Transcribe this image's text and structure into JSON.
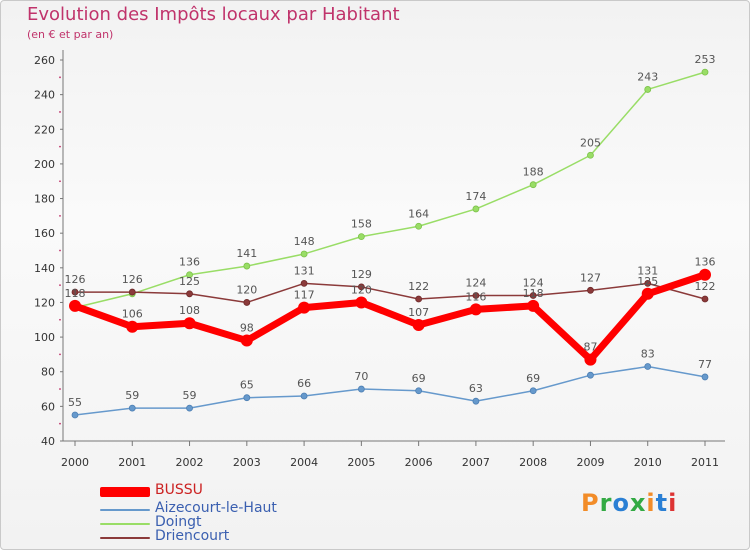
{
  "chart_data": {
    "type": "line",
    "title": "Evolution des Impôts locaux par Habitant",
    "subtitle": "(en € et par an)",
    "x": [
      "2000",
      "2001",
      "2002",
      "2003",
      "2004",
      "2005",
      "2006",
      "2007",
      "2008",
      "2009",
      "2010",
      "2011"
    ],
    "ylim": [
      40,
      260
    ],
    "yticks": [
      40,
      60,
      80,
      100,
      120,
      140,
      160,
      180,
      200,
      220,
      240,
      260
    ],
    "grid": false,
    "legend_position": "bottom-left",
    "series": [
      {
        "name": "BUSSU",
        "color": "#ff0000",
        "values": [
          118,
          106,
          108,
          98,
          117,
          120,
          107,
          116,
          118,
          87,
          125,
          136
        ],
        "labels": [
          "118",
          "106",
          "108",
          "98",
          "117",
          "120",
          "107",
          "116",
          "118",
          "87",
          "125",
          "136"
        ]
      },
      {
        "name": "Aizecourt-le-Haut",
        "color": "#6699cc",
        "values": [
          55,
          59,
          59,
          65,
          66,
          70,
          69,
          63,
          69,
          78,
          83,
          77
        ],
        "labels": [
          "55",
          "59",
          "59",
          "65",
          "66",
          "70",
          "69",
          "63",
          "69",
          "",
          "83",
          "77"
        ]
      },
      {
        "name": "Doingt",
        "color": "#99dd66",
        "values": [
          117,
          125,
          136,
          141,
          148,
          158,
          164,
          174,
          188,
          205,
          243,
          253
        ],
        "labels": [
          "",
          "",
          "136",
          "141",
          "148",
          "158",
          "164",
          "174",
          "188",
          "205",
          "243",
          "253"
        ]
      },
      {
        "name": "Driencourt",
        "color": "#8b3a3a",
        "values": [
          126,
          126,
          125,
          120,
          131,
          129,
          122,
          124,
          124,
          127,
          131,
          122
        ],
        "labels": [
          "126",
          "126",
          "125",
          "120",
          "131",
          "129",
          "122",
          "124",
          "124",
          "127",
          "131",
          "122"
        ]
      }
    ]
  },
  "logo": {
    "text": "Proxiti",
    "colors": [
      "#f28c28",
      "#33aa44",
      "#2a7fd4",
      "#33aa44",
      "#f28c28",
      "#2a7fd4",
      "#dd3333"
    ]
  }
}
